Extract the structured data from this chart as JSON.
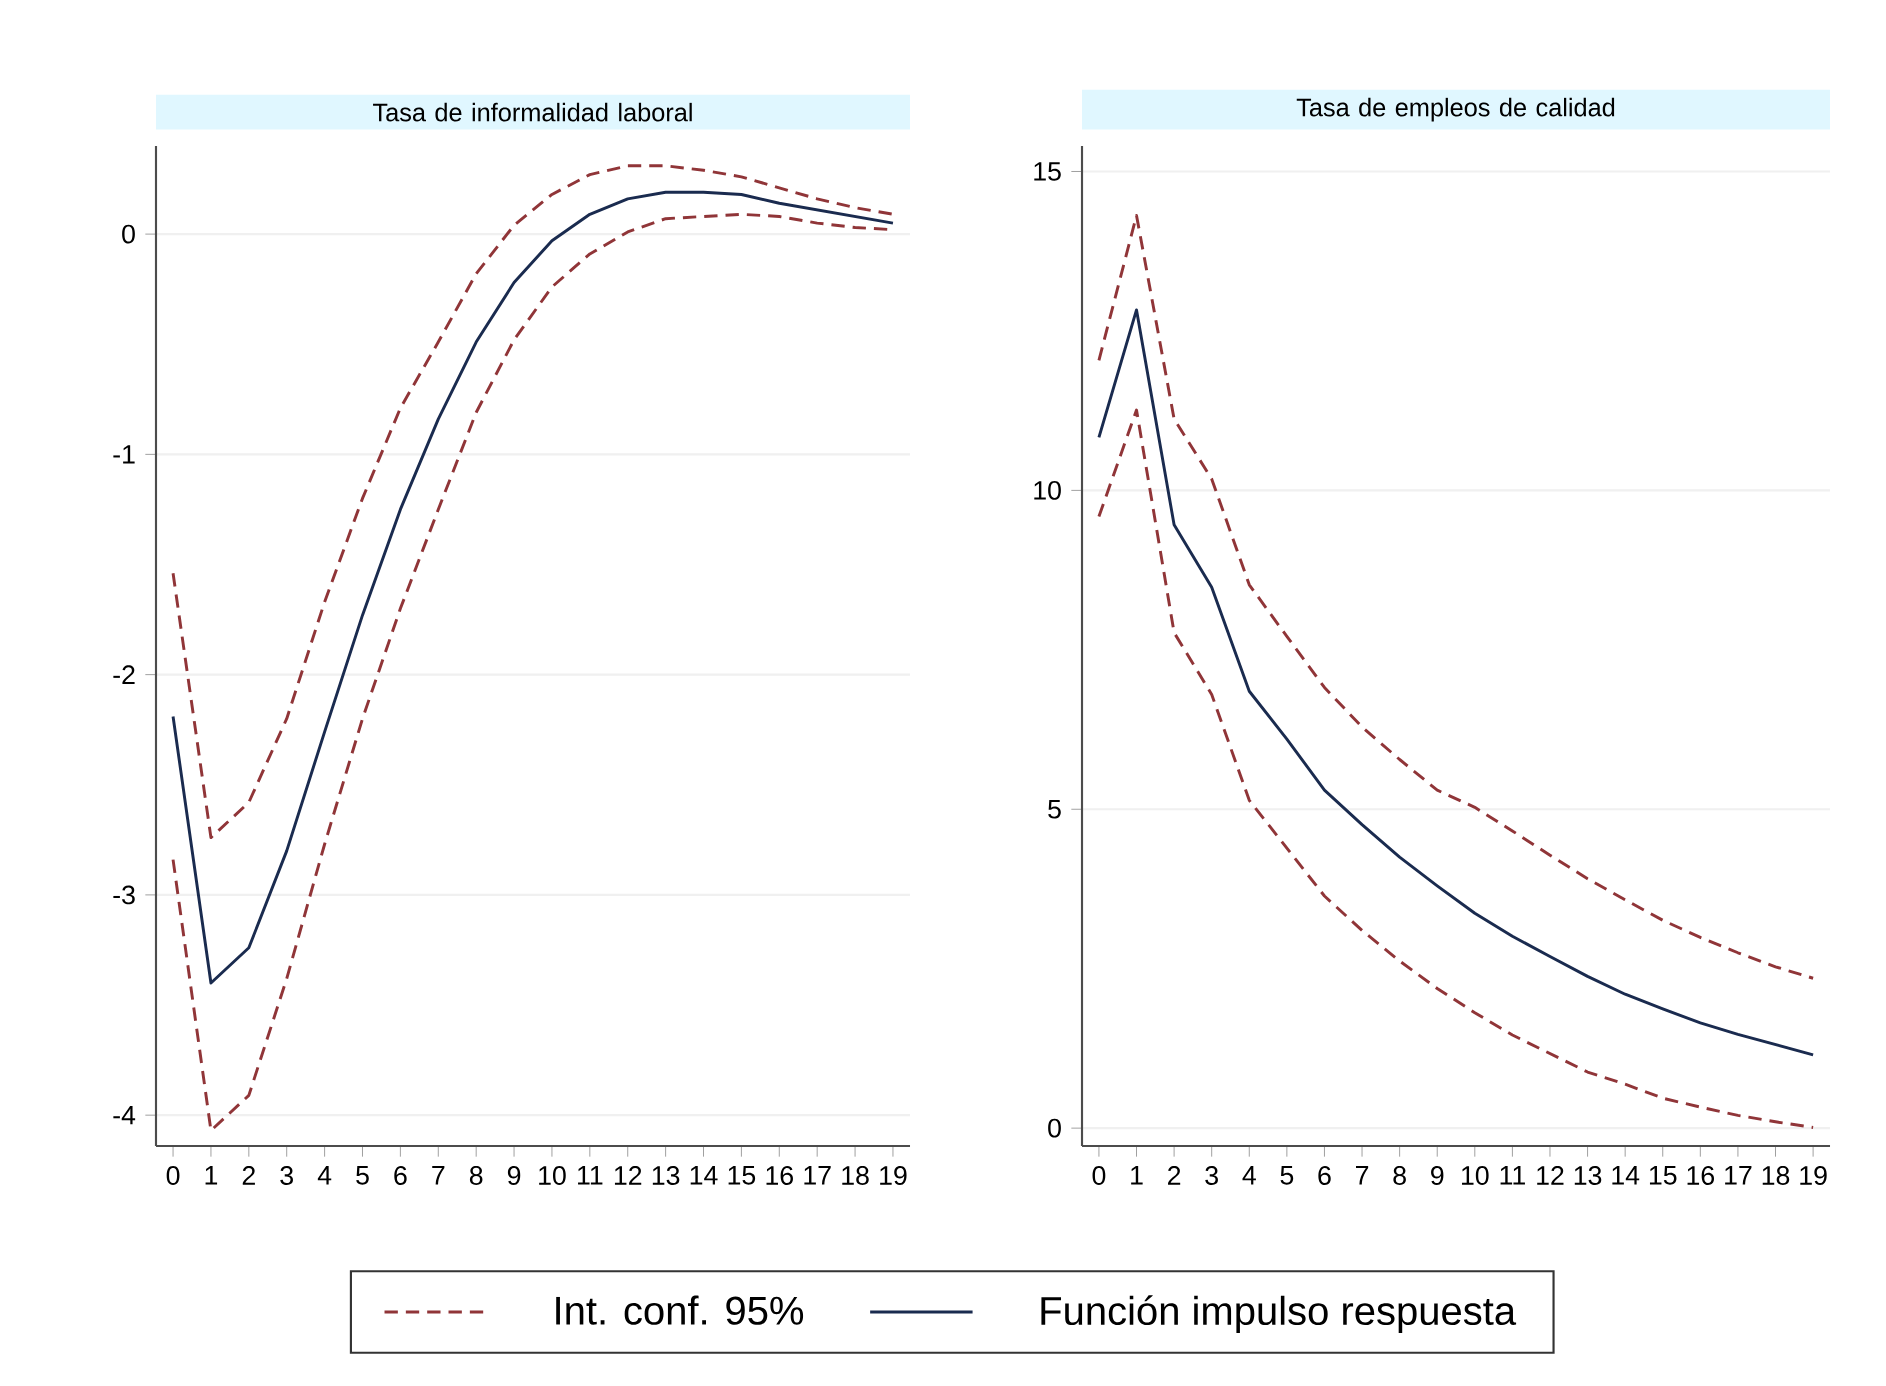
{
  "chart_data": [
    {
      "type": "line",
      "title": "Tasa de informalidad laboral",
      "x": [
        0,
        1,
        2,
        3,
        4,
        5,
        6,
        7,
        8,
        9,
        10,
        11,
        12,
        13,
        14,
        15,
        16,
        17,
        18,
        19
      ],
      "xlim": [
        -0.45,
        19.45
      ],
      "xticks": [
        0,
        1,
        2,
        3,
        4,
        5,
        6,
        7,
        8,
        9,
        10,
        11,
        12,
        13,
        14,
        15,
        16,
        17,
        18,
        19
      ],
      "ylim": [
        -4.14,
        0.4
      ],
      "yticks": [
        -4,
        -3,
        -2,
        -1,
        0
      ],
      "grid": "y",
      "legend": "bottom",
      "series": [
        {
          "name": "Int. conf. 95%",
          "color": "#903538",
          "line_style": "dashed",
          "values": [
            -1.54,
            -2.74,
            -2.58,
            -2.2,
            -1.67,
            -1.2,
            -0.79,
            -0.49,
            -0.18,
            0.04,
            0.18,
            0.27,
            0.31,
            0.31,
            0.29,
            0.26,
            0.21,
            0.16,
            0.12,
            0.09
          ]
        },
        {
          "color": "#903538",
          "line_style": "dashed",
          "values": [
            -2.84,
            -4.07,
            -3.91,
            -3.38,
            -2.77,
            -2.2,
            -1.7,
            -1.25,
            -0.81,
            -0.48,
            -0.24,
            -0.09,
            0.01,
            0.07,
            0.08,
            0.09,
            0.08,
            0.05,
            0.03,
            0.02
          ]
        },
        {
          "name": "Función impulso respuesta",
          "color": "#1a2b4f",
          "line_style": "solid",
          "values": [
            -2.19,
            -3.4,
            -3.24,
            -2.8,
            -2.26,
            -1.73,
            -1.25,
            -0.84,
            -0.49,
            -0.22,
            -0.03,
            0.09,
            0.16,
            0.19,
            0.19,
            0.18,
            0.14,
            0.11,
            0.08,
            0.05
          ]
        }
      ]
    },
    {
      "type": "line",
      "title": "Tasa de empleos de calidad",
      "x": [
        0,
        1,
        2,
        3,
        4,
        5,
        6,
        7,
        8,
        9,
        10,
        11,
        12,
        13,
        14,
        15,
        16,
        17,
        18,
        19
      ],
      "xlim": [
        -0.45,
        19.45
      ],
      "xticks": [
        0,
        1,
        2,
        3,
        4,
        5,
        6,
        7,
        8,
        9,
        10,
        11,
        12,
        13,
        14,
        15,
        16,
        17,
        18,
        19
      ],
      "ylim": [
        -0.28,
        15.4
      ],
      "yticks": [
        0,
        5,
        10,
        15
      ],
      "grid": "y",
      "series": [
        {
          "color": "#903538",
          "line_style": "dashed",
          "values": [
            12.04,
            14.31,
            11.12,
            10.18,
            8.52,
            7.71,
            6.91,
            6.29,
            5.78,
            5.3,
            5.03,
            4.66,
            4.28,
            3.91,
            3.58,
            3.26,
            2.99,
            2.75,
            2.53,
            2.35
          ]
        },
        {
          "color": "#903538",
          "line_style": "dashed",
          "values": [
            9.59,
            11.26,
            7.77,
            6.8,
            5.14,
            4.39,
            3.64,
            3.1,
            2.62,
            2.19,
            1.81,
            1.46,
            1.17,
            0.88,
            0.69,
            0.47,
            0.33,
            0.2,
            0.1,
            0.01
          ]
        },
        {
          "color": "#1a2b4f",
          "line_style": "solid",
          "values": [
            10.83,
            12.83,
            9.46,
            8.48,
            6.85,
            6.1,
            5.3,
            4.76,
            4.25,
            3.8,
            3.37,
            3.01,
            2.69,
            2.38,
            2.1,
            1.87,
            1.65,
            1.47,
            1.31,
            1.15
          ]
        }
      ]
    }
  ]
}
